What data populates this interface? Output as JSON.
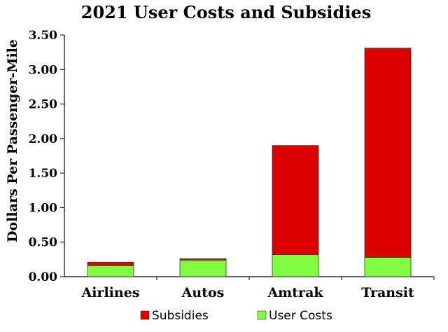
{
  "chart_data": {
    "type": "bar",
    "stacked": true,
    "title": "2021 User Costs and Subsidies",
    "xlabel": "",
    "ylabel": "Dollars Per Passenger-Mile",
    "ylim": [
      0,
      3.5
    ],
    "yticks": [
      "0.00",
      "0.50",
      "1.00",
      "1.50",
      "2.00",
      "2.50",
      "3.00",
      "3.50"
    ],
    "grid": false,
    "legend_position": "bottom",
    "categories": [
      "Airlines",
      "Autos",
      "Amtrak",
      "Transit"
    ],
    "series": [
      {
        "name": "User Costs",
        "color": "#80FF40",
        "values": [
          0.16,
          0.24,
          0.32,
          0.28
        ]
      },
      {
        "name": "Subsidies",
        "color": "#DD0000",
        "values": [
          0.05,
          0.02,
          1.58,
          3.03
        ]
      }
    ],
    "legend_order": [
      "Subsidies",
      "User Costs"
    ]
  }
}
